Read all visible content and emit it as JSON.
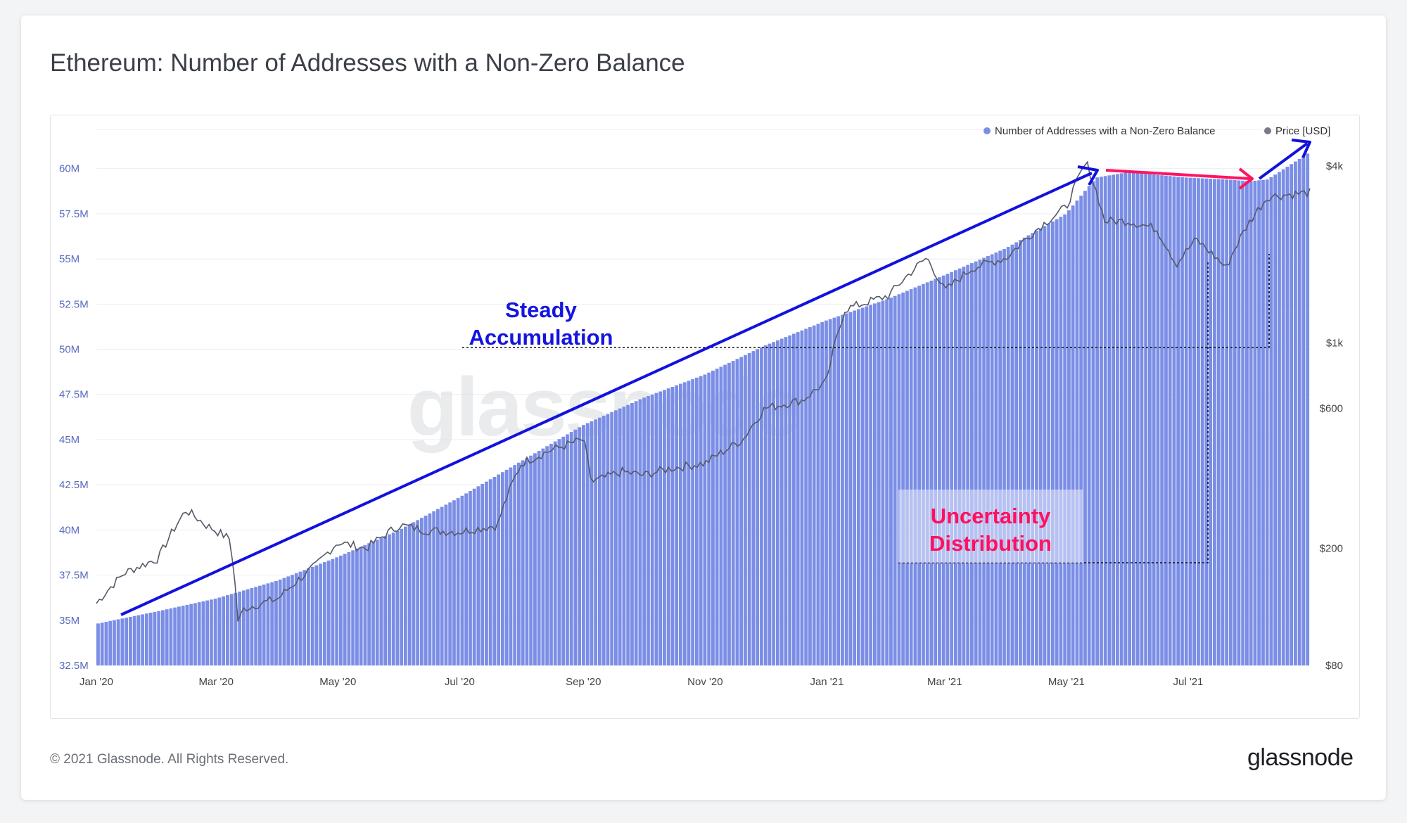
{
  "title": "Ethereum: Number of Addresses with a Non-Zero Balance",
  "footer": "© 2021 Glassnode. All Rights Reserved.",
  "brand": "glassnode",
  "watermark": "glassnode",
  "colors": {
    "bars": "#7b8ee6",
    "bar_top": "#5e74dd",
    "price": "#555a66",
    "accent_blue": "#1414e0",
    "accent_red": "#ff1060"
  },
  "chart_data": {
    "type": "bar",
    "legend_position": "top-right",
    "legend": [
      {
        "label": "Number of Addresses with a Non-Zero Balance",
        "color": "#7b8ee6"
      },
      {
        "label": "Price [USD]",
        "color": "#777b84"
      }
    ],
    "x_ticks": [
      "Jan '20",
      "Mar '20",
      "May '20",
      "Jul '20",
      "Sep '20",
      "Nov '20",
      "Jan '21",
      "Mar '21",
      "May '21",
      "Jul '21"
    ],
    "x_range": [
      "2020-01-01",
      "2021-08-31"
    ],
    "y_left_ticks": [
      "60M",
      "57.5M",
      "55M",
      "52.5M",
      "50M",
      "47.5M",
      "45M",
      "42.5M",
      "40M",
      "37.5M",
      "35M",
      "32.5M"
    ],
    "y_left_range": [
      32.5,
      61
    ],
    "y_right_ticks": [
      "$4k",
      "$1k",
      "$600",
      "$200",
      "$80"
    ],
    "y_right_scale": "log",
    "grid": true,
    "series": [
      {
        "name": "Number of Addresses with a Non-Zero Balance",
        "kind": "bar",
        "unit": "M",
        "points": [
          [
            "2020-01-01",
            34.8
          ],
          [
            "2020-02-01",
            35.5
          ],
          [
            "2020-03-01",
            36.2
          ],
          [
            "2020-04-01",
            37.2
          ],
          [
            "2020-05-01",
            38.5
          ],
          [
            "2020-06-01",
            40.0
          ],
          [
            "2020-07-01",
            41.8
          ],
          [
            "2020-08-01",
            43.8
          ],
          [
            "2020-09-01",
            45.8
          ],
          [
            "2020-10-01",
            47.3
          ],
          [
            "2020-11-01",
            48.6
          ],
          [
            "2020-12-01",
            50.2
          ],
          [
            "2021-01-01",
            51.6
          ],
          [
            "2021-02-01",
            52.8
          ],
          [
            "2021-03-01",
            54.1
          ],
          [
            "2021-04-01",
            55.6
          ],
          [
            "2021-05-01",
            57.5
          ],
          [
            "2021-05-16",
            59.5
          ],
          [
            "2021-06-01",
            59.8
          ],
          [
            "2021-07-01",
            59.5
          ],
          [
            "2021-07-20",
            59.4
          ],
          [
            "2021-08-01",
            59.3
          ],
          [
            "2021-08-10",
            59.4
          ],
          [
            "2021-08-31",
            60.9
          ]
        ]
      },
      {
        "name": "Price [USD]",
        "kind": "line",
        "unit": "USD",
        "points": [
          [
            "2020-01-01",
            130
          ],
          [
            "2020-01-15",
            165
          ],
          [
            "2020-02-01",
            185
          ],
          [
            "2020-02-15",
            270
          ],
          [
            "2020-02-25",
            240
          ],
          [
            "2020-03-08",
            215
          ],
          [
            "2020-03-12",
            112
          ],
          [
            "2020-03-15",
            125
          ],
          [
            "2020-04-01",
            135
          ],
          [
            "2020-04-20",
            175
          ],
          [
            "2020-05-01",
            210
          ],
          [
            "2020-05-15",
            200
          ],
          [
            "2020-06-01",
            240
          ],
          [
            "2020-06-15",
            230
          ],
          [
            "2020-07-01",
            228
          ],
          [
            "2020-07-20",
            240
          ],
          [
            "2020-08-01",
            390
          ],
          [
            "2020-08-15",
            430
          ],
          [
            "2020-09-01",
            470
          ],
          [
            "2020-09-05",
            335
          ],
          [
            "2020-09-20",
            365
          ],
          [
            "2020-10-01",
            355
          ],
          [
            "2020-10-15",
            375
          ],
          [
            "2020-11-01",
            390
          ],
          [
            "2020-11-20",
            470
          ],
          [
            "2020-12-01",
            600
          ],
          [
            "2020-12-20",
            640
          ],
          [
            "2021-01-01",
            740
          ],
          [
            "2021-01-10",
            1300
          ],
          [
            "2021-02-01",
            1450
          ],
          [
            "2021-02-20",
            1950
          ],
          [
            "2021-03-01",
            1500
          ],
          [
            "2021-03-15",
            1800
          ],
          [
            "2021-04-01",
            1950
          ],
          [
            "2021-04-15",
            2400
          ],
          [
            "2021-05-01",
            2900
          ],
          [
            "2021-05-11",
            4100
          ],
          [
            "2021-05-20",
            2600
          ],
          [
            "2021-06-01",
            2600
          ],
          [
            "2021-06-15",
            2450
          ],
          [
            "2021-06-25",
            1850
          ],
          [
            "2021-07-05",
            2250
          ],
          [
            "2021-07-20",
            1800
          ],
          [
            "2021-08-01",
            2600
          ],
          [
            "2021-08-10",
            3150
          ],
          [
            "2021-08-31",
            3250
          ]
        ]
      }
    ],
    "annotations": [
      "Steady",
      "Accumulation",
      "Uncertainty",
      "Distribution"
    ]
  }
}
